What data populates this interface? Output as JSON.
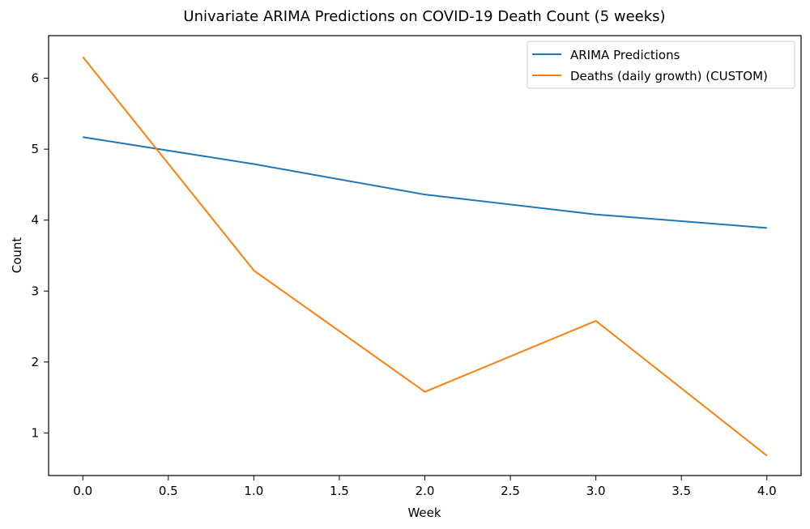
{
  "chart_data": {
    "type": "line",
    "title": "Univariate ARIMA Predictions on COVID-19 Death Count (5 weeks)",
    "xlabel": "Week",
    "ylabel": "Count",
    "x": [
      0,
      1,
      2,
      3,
      4
    ],
    "xlim": [
      -0.2,
      4.2
    ],
    "ylim": [
      0.4,
      6.6
    ],
    "xticks": [
      0.0,
      0.5,
      1.0,
      1.5,
      2.0,
      2.5,
      3.0,
      3.5,
      4.0
    ],
    "xtick_labels": [
      "0.0",
      "0.5",
      "1.0",
      "1.5",
      "2.0",
      "2.5",
      "3.0",
      "3.5",
      "4.0"
    ],
    "yticks": [
      1,
      2,
      3,
      4,
      5,
      6
    ],
    "ytick_labels": [
      "1",
      "2",
      "3",
      "4",
      "5",
      "6"
    ],
    "grid": false,
    "legend_position": "top-right",
    "series": [
      {
        "name": "ARIMA Predictions",
        "color": "#1f77b4",
        "values": [
          5.17,
          4.79,
          4.36,
          4.08,
          3.89
        ]
      },
      {
        "name": "Deaths (daily growth) (CUSTOM)",
        "color": "#ff7f0e",
        "values": [
          6.3,
          3.29,
          1.58,
          2.58,
          0.68
        ]
      }
    ]
  }
}
